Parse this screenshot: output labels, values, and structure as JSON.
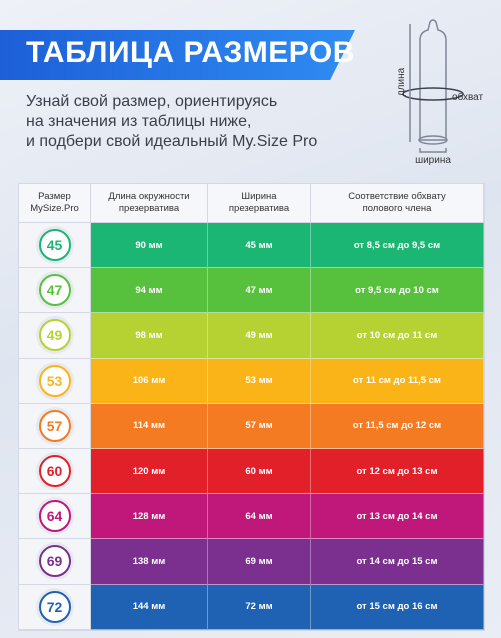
{
  "header": {
    "title": "ТАБЛИЦА РАЗМЕРОВ",
    "subtitle": [
      "Узнай свой размер, ориентируясь",
      "на значения из таблицы ниже,",
      "и подбери свой идеальный My.Size Pro"
    ]
  },
  "diagram": {
    "length": "длина",
    "girth": "обхват",
    "width": "ширина"
  },
  "table": {
    "columns": [
      [
        "Размер",
        "MySize.Pro"
      ],
      [
        "Длина окружности",
        "презерватива"
      ],
      [
        "Ширина",
        "презерватива"
      ],
      [
        "Соответствие обхвату",
        "полового члена"
      ]
    ],
    "rows": [
      {
        "size": "45",
        "length": "90 мм",
        "width": "45 мм",
        "fit": "от 8,5 см до 9,5 см",
        "color": "#1bb673"
      },
      {
        "size": "47",
        "length": "94 мм",
        "width": "47 мм",
        "fit": "от 9,5 см до 10 см",
        "color": "#57c03c"
      },
      {
        "size": "49",
        "length": "98 мм",
        "width": "49 мм",
        "fit": "от 10 см до 11 см",
        "color": "#b5d232"
      },
      {
        "size": "53",
        "length": "106 мм",
        "width": "53 мм",
        "fit": "от 11 см до 11,5 см",
        "color": "#fbb418"
      },
      {
        "size": "57",
        "length": "114 мм",
        "width": "57 мм",
        "fit": "от 11,5 см до 12 см",
        "color": "#f47b21"
      },
      {
        "size": "60",
        "length": "120 мм",
        "width": "60 мм",
        "fit": "от 12 см до 13 см",
        "color": "#e2202a"
      },
      {
        "size": "64",
        "length": "128 мм",
        "width": "64 мм",
        "fit": "от 13 см до 14 см",
        "color": "#c0177b"
      },
      {
        "size": "69",
        "length": "138 мм",
        "width": "69 мм",
        "fit": "от 14 см до 15 см",
        "color": "#7b2f8f"
      },
      {
        "size": "72",
        "length": "144 мм",
        "width": "72 мм",
        "fit": "от 15 см до 16 см",
        "color": "#1f62b3"
      }
    ]
  }
}
